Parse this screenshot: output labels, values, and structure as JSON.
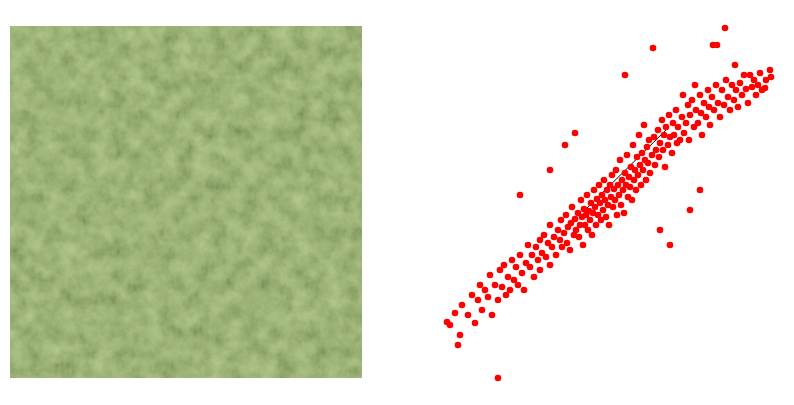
{
  "chart_data": {
    "type": "scatter",
    "color": "#ff0000",
    "marker": "circle",
    "grid": false,
    "tick_labels": false,
    "xlim": [
      0,
      340
    ],
    "ylim": [
      0,
      365
    ],
    "x": [
      10,
      15,
      20,
      22,
      7,
      18,
      58,
      28,
      32,
      35,
      38,
      40,
      42,
      45,
      48,
      50,
      52,
      55,
      58,
      60,
      62,
      64,
      66,
      68,
      70,
      72,
      74,
      76,
      78,
      80,
      82,
      84,
      86,
      88,
      90,
      92,
      94,
      96,
      98,
      100,
      100,
      102,
      104,
      106,
      108,
      110,
      110,
      112,
      114,
      116,
      118,
      120,
      121,
      122,
      124,
      126,
      127,
      128,
      130,
      131,
      132,
      134,
      135,
      136,
      138,
      139,
      140,
      141,
      142,
      143,
      144,
      145,
      146,
      147,
      148,
      149,
      150,
      151,
      152,
      153,
      154,
      155,
      156,
      157,
      158,
      159,
      160,
      161,
      162,
      163,
      164,
      165,
      166,
      167,
      168,
      169,
      170,
      171,
      172,
      173,
      174,
      175,
      176,
      177,
      178,
      179,
      180,
      181,
      182,
      183,
      184,
      185,
      186,
      187,
      188,
      189,
      190,
      191,
      192,
      193,
      194,
      195,
      196,
      197,
      198,
      199,
      200,
      201,
      202,
      203,
      204,
      205,
      206,
      207,
      208,
      209,
      210,
      212,
      213,
      214,
      215,
      216,
      218,
      219,
      220,
      222,
      223,
      224,
      225,
      226,
      228,
      229,
      230,
      232,
      233,
      234,
      236,
      237,
      238,
      240,
      242,
      243,
      244,
      246,
      248,
      249,
      250,
      252,
      254,
      255,
      256,
      258,
      260,
      261,
      262,
      264,
      266,
      268,
      269,
      270,
      272,
      273,
      274,
      276,
      277,
      278,
      280,
      282,
      284,
      285,
      286,
      288,
      290,
      292,
      294,
      295,
      296,
      298,
      300,
      302,
      304,
      306,
      308,
      310,
      312,
      314,
      316,
      318,
      320,
      322,
      325,
      326,
      330,
      331,
      185,
      125,
      135,
      80,
      110,
      230,
      250,
      260,
      220
    ],
    "values": [
      60,
      72,
      50,
      80,
      63,
      40,
      7,
      70,
      90,
      62,
      85,
      100,
      75,
      95,
      88,
      110,
      70,
      100,
      85,
      115,
      98,
      120,
      90,
      108,
      95,
      125,
      105,
      118,
      100,
      130,
      112,
      95,
      122,
      140,
      118,
      130,
      108,
      138,
      125,
      145,
      115,
      132,
      150,
      128,
      142,
      160,
      120,
      138,
      148,
      130,
      155,
      145,
      165,
      138,
      152,
      170,
      142,
      158,
      135,
      162,
      178,
      150,
      166,
      155,
      172,
      148,
      160,
      185,
      168,
      140,
      176,
      160,
      170,
      190,
      155,
      174,
      165,
      182,
      150,
      172,
      195,
      178,
      160,
      186,
      170,
      200,
      182,
      165,
      190,
      175,
      205,
      185,
      168,
      195,
      180,
      160,
      200,
      188,
      210,
      178,
      196,
      185,
      215,
      170,
      200,
      190,
      225,
      180,
      205,
      195,
      172,
      212,
      200,
      230,
      188,
      208,
      198,
      218,
      185,
      240,
      205,
      215,
      195,
      228,
      210,
      250,
      220,
      200,
      232,
      215,
      260,
      225,
      205,
      238,
      222,
      245,
      212,
      230,
      337,
      248,
      220,
      235,
      255,
      228,
      242,
      265,
      235,
      250,
      218,
      258,
      240,
      270,
      248,
      232,
      262,
      250,
      275,
      242,
      258,
      245,
      268,
      290,
      252,
      262,
      280,
      245,
      270,
      285,
      258,
      300,
      275,
      262,
      290,
      272,
      250,
      282,
      268,
      295,
      278,
      260,
      288,
      340,
      275,
      300,
      340,
      282,
      268,
      295,
      280,
      357,
      305,
      288,
      275,
      300,
      285,
      320,
      295,
      278,
      302,
      290,
      310,
      296,
      282,
      310,
      298,
      305,
      290,
      300,
      312,
      295,
      297,
      305,
      315,
      308,
      310,
      240,
      252,
      190,
      215,
      140,
      175,
      195,
      155
    ],
    "fit_line": {
      "x": [
        143,
        228
      ],
      "values": [
        173,
        257
      ],
      "color": "#000000"
    }
  }
}
